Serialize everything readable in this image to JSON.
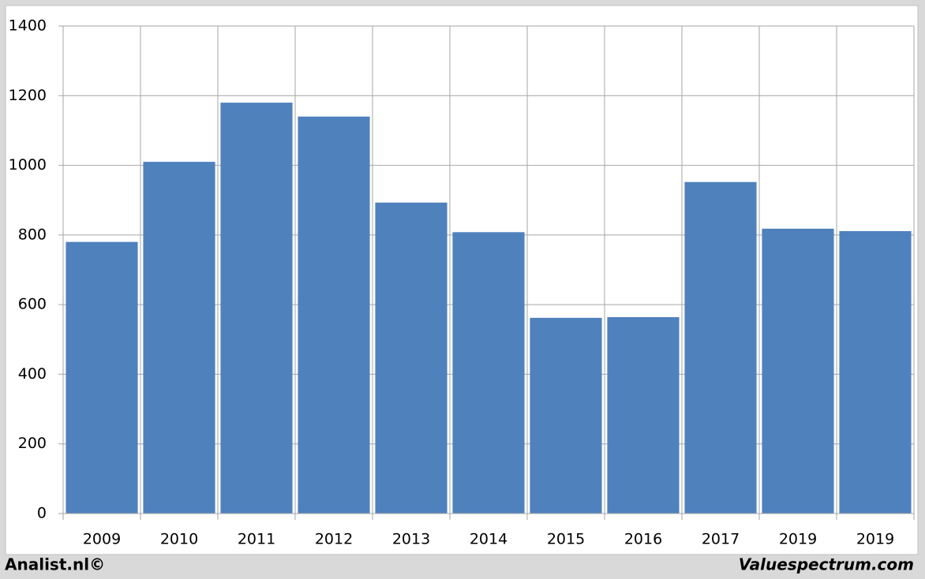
{
  "chart_data": {
    "type": "bar",
    "categories": [
      "2009",
      "2010",
      "2011",
      "2012",
      "2013",
      "2014",
      "2015",
      "2016",
      "2017",
      "2019",
      "2019"
    ],
    "values": [
      780,
      1010,
      1180,
      1140,
      893,
      808,
      562,
      564,
      952,
      818,
      811
    ],
    "color": "#4f81bd",
    "ylim": [
      0,
      1400
    ],
    "yticks": [
      0,
      200,
      400,
      600,
      800,
      1000,
      1200,
      1400
    ],
    "grid": true
  },
  "footer": {
    "left": "Analist.nl©",
    "right": "Valuespectrum.com"
  }
}
